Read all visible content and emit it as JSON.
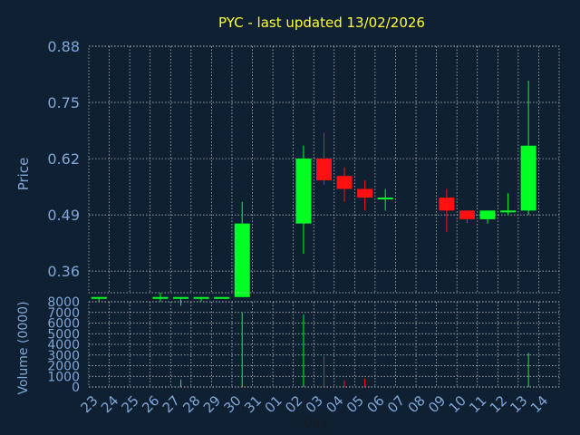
{
  "chart_data": {
    "type": "candlestick",
    "title": "PYC - last updated 13/02/2026",
    "price_panel": {
      "ylabel": "Price",
      "ylim": [
        0.31,
        0.88
      ],
      "yticks": [
        "0.88",
        "0.75",
        "0.62",
        "0.49",
        "0.36"
      ],
      "ytick_values": [
        0.88,
        0.75,
        0.62,
        0.49,
        0.36
      ],
      "grid": true
    },
    "volume_panel": {
      "ylabel": "Volume (0000)",
      "ylim": [
        0,
        8000
      ],
      "yticks": [
        "8000",
        "7000",
        "6000",
        "5000",
        "4000",
        "3000",
        "2000",
        "1000",
        "0"
      ],
      "ytick_values": [
        8000,
        7000,
        6000,
        5000,
        4000,
        3000,
        2000,
        1000,
        0
      ],
      "grid": true
    },
    "xlabel": "Day",
    "x_ticks": [
      "23",
      "24",
      "25",
      "26",
      "27",
      "28",
      "29",
      "30",
      "31",
      "01",
      "02",
      "03",
      "04",
      "05",
      "06",
      "07",
      "08",
      "09",
      "10",
      "11",
      "12",
      "13",
      "14"
    ],
    "candles": [
      {
        "day": "23",
        "open": 0.3,
        "high": 0.3,
        "low": 0.29,
        "close": 0.3,
        "volume": 0
      },
      {
        "day": "26",
        "open": 0.3,
        "high": 0.31,
        "low": 0.29,
        "close": 0.3,
        "volume": 0
      },
      {
        "day": "27",
        "open": 0.3,
        "high": 0.3,
        "low": 0.28,
        "close": 0.3,
        "volume": 700
      },
      {
        "day": "28",
        "open": 0.3,
        "high": 0.3,
        "low": 0.29,
        "close": 0.3,
        "volume": 0
      },
      {
        "day": "29",
        "open": 0.3,
        "high": 0.3,
        "low": 0.3,
        "close": 0.3,
        "volume": 0
      },
      {
        "day": "30",
        "open": 0.3,
        "high": 0.52,
        "low": 0.3,
        "close": 0.47,
        "volume": 7000
      },
      {
        "day": "02",
        "open": 0.47,
        "high": 0.65,
        "low": 0.4,
        "close": 0.62,
        "volume": 6800
      },
      {
        "day": "03",
        "open": 0.62,
        "high": 0.68,
        "low": 0.56,
        "close": 0.57,
        "volume": 2900
      },
      {
        "day": "04",
        "open": 0.58,
        "high": 0.6,
        "low": 0.52,
        "close": 0.55,
        "volume": 600
      },
      {
        "day": "05",
        "open": 0.55,
        "high": 0.57,
        "low": 0.5,
        "close": 0.53,
        "volume": 800
      },
      {
        "day": "06",
        "open": 0.53,
        "high": 0.55,
        "low": 0.5,
        "close": 0.53,
        "volume": 0
      },
      {
        "day": "09",
        "open": 0.53,
        "high": 0.55,
        "low": 0.45,
        "close": 0.5,
        "volume": 0
      },
      {
        "day": "10",
        "open": 0.5,
        "high": 0.5,
        "low": 0.47,
        "close": 0.48,
        "volume": 0
      },
      {
        "day": "11",
        "open": 0.48,
        "high": 0.5,
        "low": 0.47,
        "close": 0.5,
        "volume": 0
      },
      {
        "day": "12",
        "open": 0.5,
        "high": 0.54,
        "low": 0.49,
        "close": 0.5,
        "volume": 0
      },
      {
        "day": "13",
        "open": 0.5,
        "high": 0.8,
        "low": 0.49,
        "close": 0.65,
        "volume": 3200
      }
    ],
    "colors": {
      "background": "#102033",
      "up": "#00ff22",
      "down": "#ff1111",
      "grid": "#c8c8c8",
      "axis_text": "#7ea7d8",
      "title": "#ffff33",
      "xlabel": "#1a1a1a"
    }
  }
}
